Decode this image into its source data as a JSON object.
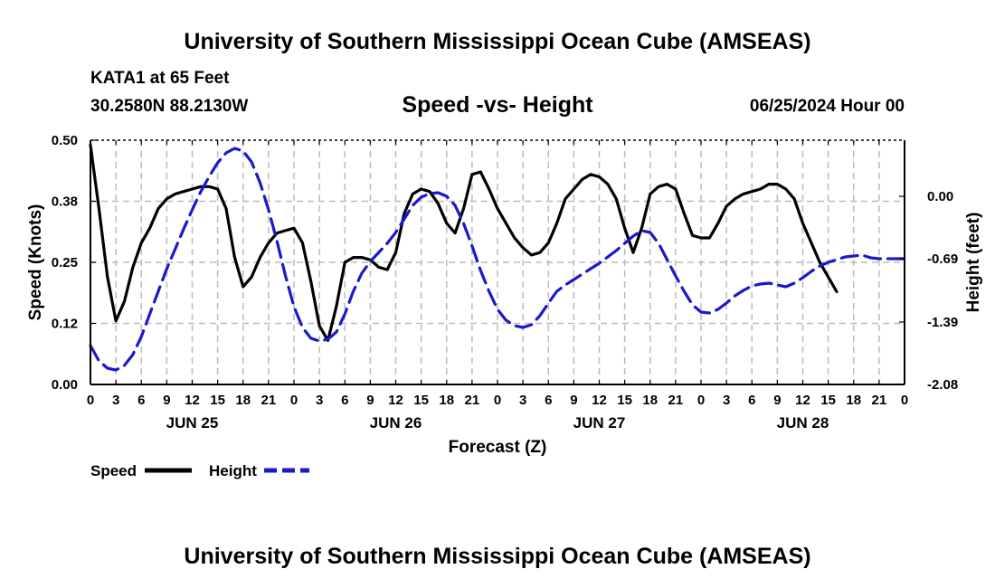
{
  "header": {
    "title": "University of Southern Mississippi Ocean Cube (AMSEAS)",
    "station": "KATA1 at 65 Feet",
    "coordinates": "30.2580N  88.2130W",
    "date": "06/25/2024 Hour 00"
  },
  "footer": {
    "title": "University of Southern Mississippi Ocean Cube (AMSEAS)"
  },
  "colors": {
    "speed": "#000000",
    "height": "#1a1acc",
    "grid": "#bbbbbb"
  },
  "chart_data": {
    "type": "line",
    "title": "Speed -vs- Height",
    "xlabel": "Forecast (Z)",
    "ylabel_left": "Speed (Knots)",
    "ylabel_right": "Height (feet)",
    "x_ticks": [
      "0",
      "3",
      "6",
      "9",
      "12",
      "15",
      "18",
      "21",
      "0",
      "3",
      "6",
      "9",
      "12",
      "15",
      "18",
      "21",
      "0",
      "3",
      "6",
      "9",
      "12",
      "15",
      "18",
      "21",
      "0",
      "3",
      "6",
      "9",
      "12",
      "15",
      "18",
      "21",
      "0"
    ],
    "day_labels": [
      {
        "label": "JUN 25",
        "hour": 12
      },
      {
        "label": "JUN 26",
        "hour": 36
      },
      {
        "label": "JUN 27",
        "hour": 60
      },
      {
        "label": "JUN 28",
        "hour": 84
      }
    ],
    "xlim": [
      0,
      96
    ],
    "ylim_left": [
      0,
      0.5
    ],
    "yticks_left": [
      "0.00",
      "0.12",
      "0.25",
      "0.38",
      "0.50"
    ],
    "ylim_right": [
      -2.08,
      0.62
    ],
    "yticks_right": [
      "-2.08",
      "-1.39",
      "-0.69",
      "0.00"
    ],
    "grid": true,
    "legend": [
      {
        "name": "Speed",
        "style": "solid"
      },
      {
        "name": "Height",
        "style": "dashed"
      }
    ],
    "series": [
      {
        "name": "Speed",
        "axis": "left",
        "style": "solid",
        "points": [
          [
            0,
            0.49
          ],
          [
            1,
            0.36
          ],
          [
            2,
            0.22
          ],
          [
            3,
            0.13
          ],
          [
            4,
            0.17
          ],
          [
            5,
            0.24
          ],
          [
            6,
            0.29
          ],
          [
            7,
            0.32
          ],
          [
            8,
            0.36
          ],
          [
            9,
            0.38
          ],
          [
            10,
            0.39
          ],
          [
            11,
            0.395
          ],
          [
            12,
            0.4
          ],
          [
            13,
            0.405
          ],
          [
            14,
            0.405
          ],
          [
            15,
            0.4
          ],
          [
            16,
            0.36
          ],
          [
            17,
            0.26
          ],
          [
            18,
            0.2
          ],
          [
            19,
            0.22
          ],
          [
            20,
            0.26
          ],
          [
            21,
            0.29
          ],
          [
            22,
            0.31
          ],
          [
            23,
            0.315
          ],
          [
            24,
            0.32
          ],
          [
            25,
            0.29
          ],
          [
            26,
            0.21
          ],
          [
            27,
            0.12
          ],
          [
            28,
            0.09
          ],
          [
            29,
            0.16
          ],
          [
            30,
            0.25
          ],
          [
            31,
            0.26
          ],
          [
            32,
            0.26
          ],
          [
            33,
            0.255
          ],
          [
            34,
            0.24
          ],
          [
            35,
            0.235
          ],
          [
            36,
            0.27
          ],
          [
            37,
            0.35
          ],
          [
            38,
            0.39
          ],
          [
            39,
            0.4
          ],
          [
            40,
            0.395
          ],
          [
            41,
            0.37
          ],
          [
            42,
            0.33
          ],
          [
            43,
            0.31
          ],
          [
            44,
            0.36
          ],
          [
            45,
            0.43
          ],
          [
            46,
            0.435
          ],
          [
            47,
            0.4
          ],
          [
            48,
            0.36
          ],
          [
            49,
            0.33
          ],
          [
            50,
            0.3
          ],
          [
            51,
            0.28
          ],
          [
            52,
            0.265
          ],
          [
            53,
            0.27
          ],
          [
            54,
            0.29
          ],
          [
            55,
            0.33
          ],
          [
            56,
            0.38
          ],
          [
            57,
            0.4
          ],
          [
            58,
            0.42
          ],
          [
            59,
            0.43
          ],
          [
            60,
            0.425
          ],
          [
            61,
            0.41
          ],
          [
            62,
            0.38
          ],
          [
            63,
            0.32
          ],
          [
            64,
            0.27
          ],
          [
            65,
            0.32
          ],
          [
            66,
            0.39
          ],
          [
            67,
            0.405
          ],
          [
            68,
            0.41
          ],
          [
            69,
            0.4
          ],
          [
            70,
            0.35
          ],
          [
            71,
            0.305
          ],
          [
            72,
            0.3
          ],
          [
            73,
            0.3
          ],
          [
            74,
            0.33
          ],
          [
            75,
            0.365
          ],
          [
            76,
            0.38
          ],
          [
            77,
            0.39
          ],
          [
            78,
            0.395
          ],
          [
            79,
            0.4
          ],
          [
            80,
            0.41
          ],
          [
            81,
            0.41
          ],
          [
            82,
            0.4
          ],
          [
            83,
            0.38
          ],
          [
            84,
            0.33
          ],
          [
            85,
            0.29
          ],
          [
            86,
            0.25
          ],
          [
            87,
            0.22
          ],
          [
            88,
            0.19
          ]
        ]
      },
      {
        "name": "Height",
        "axis": "right",
        "style": "dashed",
        "points": [
          [
            0,
            -1.65
          ],
          [
            1,
            -1.82
          ],
          [
            2,
            -1.9
          ],
          [
            3,
            -1.92
          ],
          [
            4,
            -1.87
          ],
          [
            5,
            -1.75
          ],
          [
            6,
            -1.55
          ],
          [
            7,
            -1.3
          ],
          [
            8,
            -1.05
          ],
          [
            9,
            -0.8
          ],
          [
            10,
            -0.58
          ],
          [
            11,
            -0.36
          ],
          [
            12,
            -0.15
          ],
          [
            13,
            0.05
          ],
          [
            14,
            0.22
          ],
          [
            15,
            0.37
          ],
          [
            16,
            0.48
          ],
          [
            17,
            0.53
          ],
          [
            18,
            0.5
          ],
          [
            19,
            0.38
          ],
          [
            20,
            0.15
          ],
          [
            21,
            -0.15
          ],
          [
            22,
            -0.5
          ],
          [
            23,
            -0.88
          ],
          [
            24,
            -1.22
          ],
          [
            25,
            -1.45
          ],
          [
            26,
            -1.57
          ],
          [
            27,
            -1.6
          ],
          [
            28,
            -1.58
          ],
          [
            29,
            -1.5
          ],
          [
            30,
            -1.3
          ],
          [
            31,
            -1.05
          ],
          [
            32,
            -0.85
          ],
          [
            33,
            -0.72
          ],
          [
            34,
            -0.62
          ],
          [
            35,
            -0.52
          ],
          [
            36,
            -0.4
          ],
          [
            37,
            -0.25
          ],
          [
            38,
            -0.1
          ],
          [
            39,
            -0.01
          ],
          [
            40,
            0.03
          ],
          [
            41,
            0.04
          ],
          [
            42,
            0.0
          ],
          [
            43,
            -0.1
          ],
          [
            44,
            -0.3
          ],
          [
            45,
            -0.55
          ],
          [
            46,
            -0.82
          ],
          [
            47,
            -1.05
          ],
          [
            48,
            -1.25
          ],
          [
            49,
            -1.37
          ],
          [
            50,
            -1.43
          ],
          [
            51,
            -1.45
          ],
          [
            52,
            -1.42
          ],
          [
            53,
            -1.32
          ],
          [
            54,
            -1.18
          ],
          [
            55,
            -1.05
          ],
          [
            56,
            -0.98
          ],
          [
            57,
            -0.92
          ],
          [
            58,
            -0.86
          ],
          [
            59,
            -0.8
          ],
          [
            60,
            -0.74
          ],
          [
            61,
            -0.67
          ],
          [
            62,
            -0.6
          ],
          [
            63,
            -0.52
          ],
          [
            64,
            -0.44
          ],
          [
            65,
            -0.38
          ],
          [
            66,
            -0.4
          ],
          [
            67,
            -0.52
          ],
          [
            68,
            -0.7
          ],
          [
            69,
            -0.88
          ],
          [
            70,
            -1.05
          ],
          [
            71,
            -1.2
          ],
          [
            72,
            -1.28
          ],
          [
            73,
            -1.29
          ],
          [
            74,
            -1.25
          ],
          [
            75,
            -1.18
          ],
          [
            76,
            -1.1
          ],
          [
            77,
            -1.04
          ],
          [
            78,
            -0.99
          ],
          [
            79,
            -0.97
          ],
          [
            80,
            -0.96
          ],
          [
            81,
            -0.98
          ],
          [
            82,
            -1.0
          ],
          [
            83,
            -0.96
          ],
          [
            84,
            -0.9
          ],
          [
            85,
            -0.83
          ],
          [
            86,
            -0.77
          ],
          [
            87,
            -0.73
          ],
          [
            88,
            -0.7
          ],
          [
            89,
            -0.67
          ],
          [
            90,
            -0.66
          ],
          [
            91,
            -0.65
          ],
          [
            92,
            -0.68
          ],
          [
            93,
            -0.69
          ],
          [
            94,
            -0.69
          ],
          [
            95,
            -0.69
          ],
          [
            96,
            -0.69
          ]
        ]
      }
    ]
  }
}
